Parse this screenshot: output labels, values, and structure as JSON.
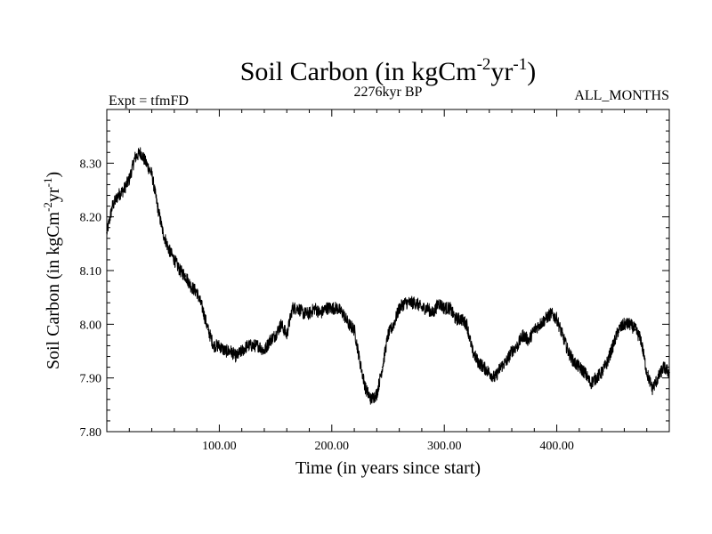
{
  "chart_data": {
    "type": "line",
    "title": {
      "main": "Soil Carbon (in kgCm",
      "sup1": "-2",
      "mid": "yr",
      "sup2": "-1",
      "end": ")"
    },
    "subtitle_left": "Expt = tfmFD",
    "subtitle_center": "2276kyr BP",
    "subtitle_right": "ALL_MONTHS",
    "xlabel": "Time (in years since start)",
    "ylabel": {
      "main": "Soil Carbon (in kgCm",
      "sup1": "-2",
      "mid": "yr",
      "sup2": "-1",
      "end": ")"
    },
    "xlim": [
      0,
      500
    ],
    "ylim": [
      7.8,
      8.4
    ],
    "x_ticks": [
      100,
      200,
      300,
      400
    ],
    "x_tick_labels": [
      "100.00",
      "200.00",
      "300.00",
      "400.00"
    ],
    "y_ticks": [
      7.8,
      7.9,
      8.0,
      8.1,
      8.2,
      8.3
    ],
    "y_tick_labels": [
      "7.80",
      "7.90",
      "8.00",
      "8.10",
      "8.20",
      "8.30"
    ],
    "grid": false,
    "series": [
      {
        "name": "Soil Carbon",
        "color": "#000000",
        "x": [
          0,
          5,
          10,
          15,
          20,
          25,
          30,
          35,
          40,
          45,
          50,
          55,
          60,
          65,
          70,
          75,
          80,
          85,
          90,
          95,
          100,
          105,
          110,
          115,
          120,
          125,
          130,
          135,
          140,
          145,
          150,
          155,
          160,
          165,
          170,
          175,
          180,
          185,
          190,
          195,
          200,
          205,
          210,
          215,
          220,
          225,
          230,
          235,
          240,
          245,
          250,
          255,
          260,
          265,
          270,
          275,
          280,
          285,
          290,
          295,
          300,
          305,
          310,
          315,
          320,
          325,
          330,
          335,
          340,
          345,
          350,
          355,
          360,
          365,
          370,
          375,
          380,
          385,
          390,
          395,
          400,
          405,
          410,
          415,
          420,
          425,
          430,
          435,
          440,
          445,
          450,
          455,
          460,
          465,
          470,
          475,
          480,
          485,
          490,
          495,
          500
        ],
        "values": [
          8.17,
          8.22,
          8.24,
          8.25,
          8.27,
          8.31,
          8.32,
          8.3,
          8.28,
          8.22,
          8.17,
          8.14,
          8.12,
          8.1,
          8.09,
          8.07,
          8.06,
          8.03,
          7.99,
          7.96,
          7.96,
          7.95,
          7.95,
          7.94,
          7.95,
          7.96,
          7.96,
          7.96,
          7.95,
          7.97,
          7.98,
          8.0,
          7.98,
          8.03,
          8.03,
          8.02,
          8.02,
          8.03,
          8.02,
          8.03,
          8.03,
          8.03,
          8.02,
          8.0,
          7.99,
          7.93,
          7.88,
          7.86,
          7.87,
          7.92,
          7.98,
          8.0,
          8.03,
          8.04,
          8.04,
          8.04,
          8.03,
          8.03,
          8.02,
          8.04,
          8.03,
          8.03,
          8.01,
          8.01,
          8.0,
          7.95,
          7.93,
          7.92,
          7.91,
          7.9,
          7.92,
          7.93,
          7.95,
          7.96,
          7.98,
          7.97,
          7.99,
          8.0,
          8.01,
          8.02,
          8.01,
          7.98,
          7.95,
          7.93,
          7.92,
          7.91,
          7.89,
          7.9,
          7.91,
          7.93,
          7.96,
          7.99,
          8.0,
          8.0,
          7.99,
          7.97,
          7.91,
          7.88,
          7.9,
          7.92,
          7.91
        ]
      }
    ]
  }
}
